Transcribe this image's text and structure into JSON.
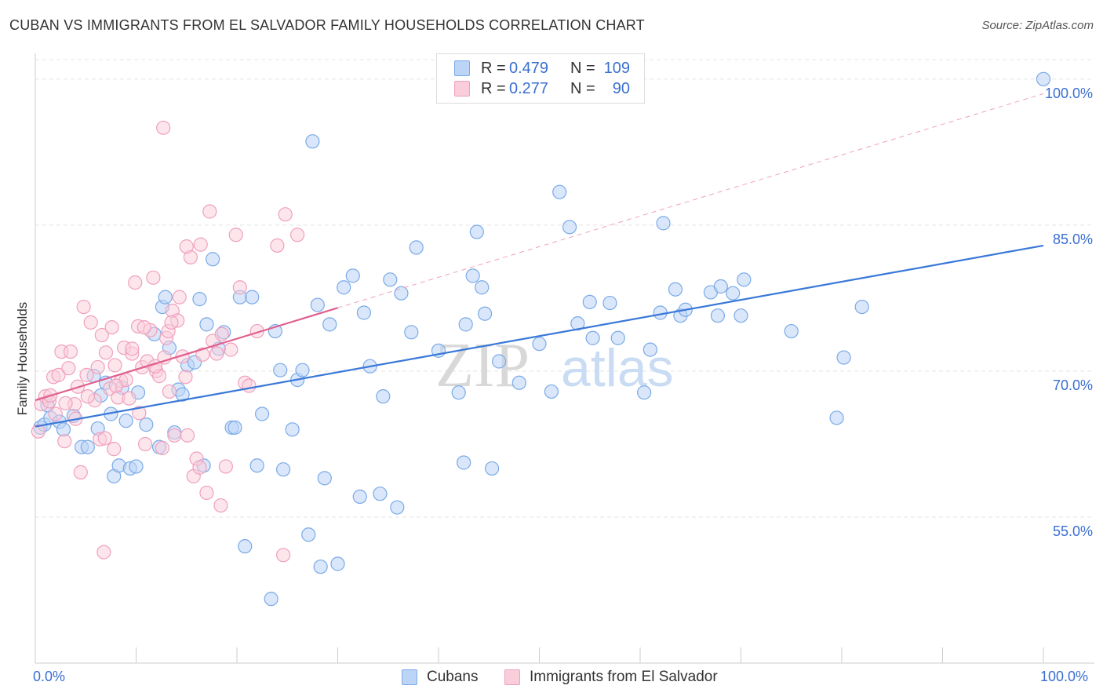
{
  "title": "CUBAN VS IMMIGRANTS FROM EL SALVADOR FAMILY HOUSEHOLDS CORRELATION CHART",
  "source": "Source: ZipAtlas.com",
  "watermark": {
    "part1": "ZIP",
    "part2": "atlas"
  },
  "legend": {
    "rows": [
      {
        "r_label": "R =",
        "r_value": "0.479",
        "n_label": "N =",
        "n_value": "109",
        "color": "#7aaae8",
        "fill": "#bcd4f5"
      },
      {
        "r_label": "R =",
        "r_value": "0.277",
        "n_label": "N =",
        "n_value": "90",
        "color": "#f0a0bd",
        "fill": "#f9cdd9"
      }
    ]
  },
  "bottom_legend": [
    {
      "label": "Cubans",
      "color": "#7aaae8",
      "fill": "#bcd4f5"
    },
    {
      "label": "Immigrants from El Salvador",
      "color": "#f0a0bd",
      "fill": "#f9cdd9"
    }
  ],
  "chart_data": {
    "type": "scatter",
    "title": "CUBAN VS IMMIGRANTS FROM EL SALVADOR FAMILY HOUSEHOLDS CORRELATION CHART",
    "xlabel": "",
    "ylabel": "Family Households",
    "x_tick_labels": [
      "0.0%",
      "100.0%"
    ],
    "y_tick_labels": [
      "55.0%",
      "70.0%",
      "85.0%",
      "100.0%"
    ],
    "y_ticks": [
      55,
      70,
      85,
      100
    ],
    "xlim": [
      0,
      100
    ],
    "ylim": [
      40,
      102
    ],
    "grid": true,
    "legend_placement": "top-center",
    "series": [
      {
        "name": "Cubans",
        "color": "#3a78d8",
        "marker_fill": "#bcd4f5",
        "marker_stroke": "#7aaae8",
        "trend": {
          "x": [
            0,
            100
          ],
          "y": [
            64.3,
            82.9
          ],
          "style": "solid"
        },
        "points": [
          [
            0.5,
            64.2
          ],
          [
            0.9,
            64.5
          ],
          [
            1.5,
            65.2
          ],
          [
            2.4,
            64.8
          ],
          [
            3.8,
            65.4
          ],
          [
            4.6,
            62.2
          ],
          [
            5.2,
            62.2
          ],
          [
            5.8,
            69.5
          ],
          [
            6.5,
            67.5
          ],
          [
            7.0,
            68.8
          ],
          [
            7.5,
            65.6
          ],
          [
            7.8,
            59.2
          ],
          [
            8.3,
            60.3
          ],
          [
            8.6,
            68.3
          ],
          [
            9.0,
            64.9
          ],
          [
            9.4,
            60.0
          ],
          [
            10.0,
            60.2
          ],
          [
            10.2,
            67.8
          ],
          [
            11.0,
            64.5
          ],
          [
            11.8,
            73.8
          ],
          [
            12.3,
            62.2
          ],
          [
            12.6,
            76.6
          ],
          [
            12.9,
            77.6
          ],
          [
            13.3,
            72.4
          ],
          [
            13.8,
            63.7
          ],
          [
            14.2,
            68.1
          ],
          [
            14.6,
            67.6
          ],
          [
            15.1,
            70.6
          ],
          [
            15.8,
            70.9
          ],
          [
            16.3,
            77.4
          ],
          [
            16.7,
            60.3
          ],
          [
            17.0,
            74.8
          ],
          [
            17.6,
            81.5
          ],
          [
            18.2,
            72.3
          ],
          [
            18.7,
            74.0
          ],
          [
            19.5,
            64.2
          ],
          [
            19.8,
            64.2
          ],
          [
            20.3,
            77.6
          ],
          [
            21.5,
            77.6
          ],
          [
            20.8,
            52.0
          ],
          [
            22.0,
            60.3
          ],
          [
            22.5,
            65.6
          ],
          [
            23.4,
            46.6
          ],
          [
            23.8,
            74.1
          ],
          [
            24.3,
            70.1
          ],
          [
            24.6,
            59.9
          ],
          [
            25.5,
            64.0
          ],
          [
            26.0,
            69.1
          ],
          [
            26.5,
            70.1
          ],
          [
            27.1,
            53.2
          ],
          [
            27.5,
            93.6
          ],
          [
            28.0,
            76.8
          ],
          [
            28.3,
            49.9
          ],
          [
            28.7,
            59.0
          ],
          [
            29.2,
            74.8
          ],
          [
            30.0,
            50.2
          ],
          [
            30.6,
            78.6
          ],
          [
            31.5,
            79.8
          ],
          [
            32.2,
            57.1
          ],
          [
            32.6,
            76.0
          ],
          [
            33.2,
            70.5
          ],
          [
            34.2,
            57.4
          ],
          [
            34.5,
            67.4
          ],
          [
            35.2,
            79.4
          ],
          [
            35.9,
            56.0
          ],
          [
            36.3,
            78.0
          ],
          [
            37.3,
            74.0
          ],
          [
            37.8,
            82.7
          ],
          [
            40.0,
            72.1
          ],
          [
            42.0,
            67.8
          ],
          [
            42.5,
            60.6
          ],
          [
            42.7,
            74.8
          ],
          [
            43.4,
            79.8
          ],
          [
            43.8,
            84.3
          ],
          [
            44.3,
            78.6
          ],
          [
            44.6,
            75.9
          ],
          [
            45.3,
            60.0
          ],
          [
            46.0,
            71.0
          ],
          [
            48.0,
            68.8
          ],
          [
            50.0,
            72.8
          ],
          [
            51.2,
            67.9
          ],
          [
            52.0,
            88.4
          ],
          [
            53.0,
            84.8
          ],
          [
            53.8,
            74.9
          ],
          [
            55.0,
            77.1
          ],
          [
            55.3,
            73.4
          ],
          [
            57.0,
            77.0
          ],
          [
            57.8,
            73.4
          ],
          [
            60.4,
            67.8
          ],
          [
            61.0,
            72.2
          ],
          [
            62.0,
            76.0
          ],
          [
            62.3,
            85.2
          ],
          [
            63.5,
            78.4
          ],
          [
            64.0,
            75.7
          ],
          [
            64.5,
            76.3
          ],
          [
            67.0,
            78.1
          ],
          [
            67.7,
            75.7
          ],
          [
            68.0,
            78.7
          ],
          [
            69.2,
            78.0
          ],
          [
            70.0,
            75.7
          ],
          [
            70.3,
            79.4
          ],
          [
            75.0,
            74.1
          ],
          [
            79.5,
            65.2
          ],
          [
            80.2,
            71.4
          ],
          [
            82.0,
            76.6
          ],
          [
            100.0,
            100.0
          ],
          [
            1.2,
            66.5
          ],
          [
            2.8,
            64.0
          ],
          [
            6.2,
            64.1
          ]
        ]
      },
      {
        "name": "Immigrants from El Salvador",
        "color": "#e06090",
        "marker_fill": "#f9cdd9",
        "marker_stroke": "#f0a0bd",
        "trend": {
          "x": [
            0,
            30
          ],
          "y": [
            67.0,
            76.5
          ],
          "style": "solid",
          "extension": {
            "x": [
              30,
              100
            ],
            "y": [
              76.5,
              98.5
            ],
            "style": "dashed"
          }
        },
        "points": [
          [
            0.3,
            63.8
          ],
          [
            0.6,
            66.6
          ],
          [
            1.0,
            67.4
          ],
          [
            1.4,
            66.9
          ],
          [
            1.8,
            69.4
          ],
          [
            2.3,
            69.6
          ],
          [
            2.6,
            72.0
          ],
          [
            2.9,
            62.8
          ],
          [
            3.3,
            70.3
          ],
          [
            3.5,
            72.0
          ],
          [
            3.9,
            66.6
          ],
          [
            4.2,
            68.4
          ],
          [
            4.5,
            59.6
          ],
          [
            4.8,
            76.6
          ],
          [
            5.1,
            69.6
          ],
          [
            5.5,
            75.0
          ],
          [
            5.9,
            67.0
          ],
          [
            6.2,
            70.4
          ],
          [
            6.4,
            63.0
          ],
          [
            6.6,
            73.7
          ],
          [
            6.8,
            51.4
          ],
          [
            7.0,
            71.9
          ],
          [
            7.4,
            68.2
          ],
          [
            7.6,
            74.5
          ],
          [
            7.9,
            70.6
          ],
          [
            8.2,
            67.3
          ],
          [
            8.5,
            69.0
          ],
          [
            8.8,
            72.4
          ],
          [
            9.0,
            69.1
          ],
          [
            9.3,
            67.2
          ],
          [
            9.6,
            71.8
          ],
          [
            9.9,
            79.1
          ],
          [
            10.2,
            74.6
          ],
          [
            10.6,
            70.4
          ],
          [
            10.9,
            62.5
          ],
          [
            11.1,
            71.0
          ],
          [
            11.4,
            74.2
          ],
          [
            11.7,
            79.6
          ],
          [
            12.0,
            70.0
          ],
          [
            12.3,
            69.5
          ],
          [
            12.6,
            62.1
          ],
          [
            12.8,
            71.4
          ],
          [
            13.0,
            73.4
          ],
          [
            13.3,
            67.9
          ],
          [
            13.6,
            76.2
          ],
          [
            13.8,
            63.4
          ],
          [
            14.1,
            75.2
          ],
          [
            14.3,
            77.6
          ],
          [
            14.6,
            71.5
          ],
          [
            14.9,
            69.4
          ],
          [
            15.1,
            63.4
          ],
          [
            15.4,
            81.7
          ],
          [
            15.7,
            59.2
          ],
          [
            16.0,
            61.0
          ],
          [
            16.3,
            60.1
          ],
          [
            16.6,
            71.7
          ],
          [
            17.0,
            57.5
          ],
          [
            17.3,
            86.4
          ],
          [
            17.6,
            73.1
          ],
          [
            18.0,
            71.8
          ],
          [
            18.4,
            56.2
          ],
          [
            18.9,
            60.2
          ],
          [
            19.4,
            72.2
          ],
          [
            19.9,
            84.0
          ],
          [
            20.3,
            78.6
          ],
          [
            20.8,
            68.8
          ],
          [
            21.2,
            68.5
          ],
          [
            22.0,
            74.1
          ],
          [
            24.0,
            82.9
          ],
          [
            24.6,
            51.1
          ],
          [
            24.8,
            86.1
          ],
          [
            26.0,
            84.0
          ],
          [
            12.7,
            95.0
          ],
          [
            13.2,
            74.1
          ],
          [
            5.2,
            67.4
          ],
          [
            8.0,
            68.5
          ],
          [
            10.8,
            74.5
          ],
          [
            11.9,
            70.5
          ],
          [
            3.0,
            66.7
          ],
          [
            15.0,
            82.8
          ],
          [
            16.4,
            83.0
          ],
          [
            9.6,
            72.3
          ],
          [
            6.9,
            63.1
          ],
          [
            2.0,
            65.6
          ],
          [
            4.0,
            65.1
          ],
          [
            1.5,
            67.5
          ],
          [
            18.5,
            73.8
          ],
          [
            13.5,
            75.0
          ],
          [
            7.8,
            62.0
          ],
          [
            10.3,
            65.7
          ]
        ]
      }
    ]
  }
}
